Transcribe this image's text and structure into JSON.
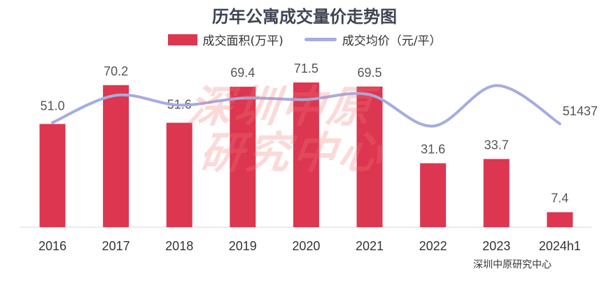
{
  "chart_data": {
    "type": "bar",
    "title": "历年公寓成交量价走势图",
    "categories": [
      "2016",
      "2017",
      "2018",
      "2019",
      "2020",
      "2021",
      "2022",
      "2023",
      "2024h1"
    ],
    "series": [
      {
        "name": "成交面积(万平)",
        "type": "bar",
        "axis": "left",
        "color": "#dc3650",
        "values": [
          51.0,
          70.2,
          51.6,
          69.4,
          71.5,
          69.5,
          31.6,
          33.7,
          7.4
        ],
        "labels": [
          "51.0",
          "70.2",
          "51.6",
          "69.4",
          "71.5",
          "69.5",
          "31.6",
          "33.7",
          "7.4"
        ]
      },
      {
        "name": "成交均价（元/平）",
        "type": "line",
        "axis": "right",
        "smooth": true,
        "color": "#a5acdf",
        "values": [
          51600,
          55500,
          54100,
          55100,
          54900,
          55600,
          51100,
          56900,
          51437
        ],
        "labels": [
          "",
          "",
          "",
          "",
          "",
          "",
          "",
          "",
          "51437"
        ]
      }
    ],
    "legend_position": "top",
    "grid": false,
    "ylim": [
      0,
      75
    ]
  },
  "watermark": "深圳中原研究中心",
  "source": "深圳中原研究中心"
}
